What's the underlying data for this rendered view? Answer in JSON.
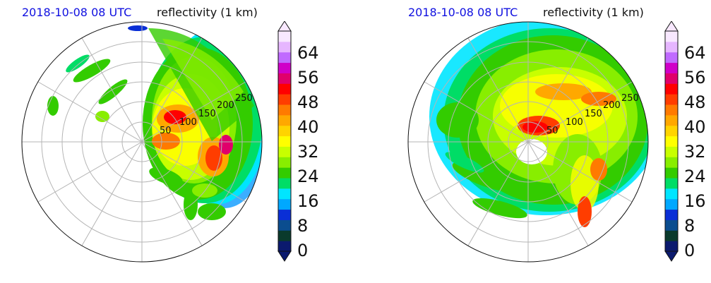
{
  "panels": [
    {
      "timestamp": "2018-10-08 08 UTC",
      "title": "reflectivity (1 km)",
      "range_labels": [
        "50",
        "100",
        "150",
        "200",
        "250"
      ]
    },
    {
      "timestamp": "2018-10-08 08 UTC",
      "title": "reflectivity (1 km)",
      "range_labels": [
        "50",
        "100",
        "150",
        "200",
        "250"
      ]
    }
  ],
  "colorbar": {
    "ticks": [
      "0",
      "8",
      "16",
      "24",
      "32",
      "40",
      "48",
      "56",
      "64"
    ],
    "colors": [
      "#0b1a6e",
      "#0a3a2c",
      "#0b4d8f",
      "#0a2fd6",
      "#00a8ff",
      "#00e5ff",
      "#00dd66",
      "#33cc00",
      "#88ee00",
      "#c8ff00",
      "#ffff00",
      "#ffd400",
      "#ffa800",
      "#ff7a00",
      "#ff3d00",
      "#ff0000",
      "#e0006b",
      "#d000c8",
      "#c06aff",
      "#e6b6ff",
      "#f8e8ff"
    ]
  },
  "colors": {
    "timestamp": "#1010e0",
    "grid": "#b5b5b5"
  }
}
